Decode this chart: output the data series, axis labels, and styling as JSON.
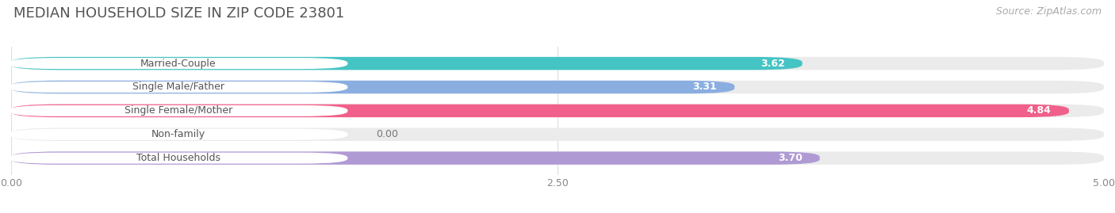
{
  "title": "MEDIAN HOUSEHOLD SIZE IN ZIP CODE 23801",
  "source": "Source: ZipAtlas.com",
  "categories": [
    "Married-Couple",
    "Single Male/Father",
    "Single Female/Mother",
    "Non-family",
    "Total Households"
  ],
  "values": [
    3.62,
    3.31,
    4.84,
    0.0,
    3.7
  ],
  "bar_colors": [
    "#45c4c4",
    "#8aaee0",
    "#f0608a",
    "#f5c99a",
    "#b09ad4"
  ],
  "bar_bg_colors": [
    "#ebebeb",
    "#ebebeb",
    "#ebebeb",
    "#ebebeb",
    "#ebebeb"
  ],
  "xlim": [
    0,
    5.0
  ],
  "xticks": [
    0.0,
    2.5,
    5.0
  ],
  "xtick_labels": [
    "0.00",
    "2.50",
    "5.00"
  ],
  "title_fontsize": 13,
  "source_fontsize": 9,
  "label_fontsize": 9,
  "value_fontsize": 9,
  "tick_fontsize": 9,
  "background_color": "#ffffff"
}
